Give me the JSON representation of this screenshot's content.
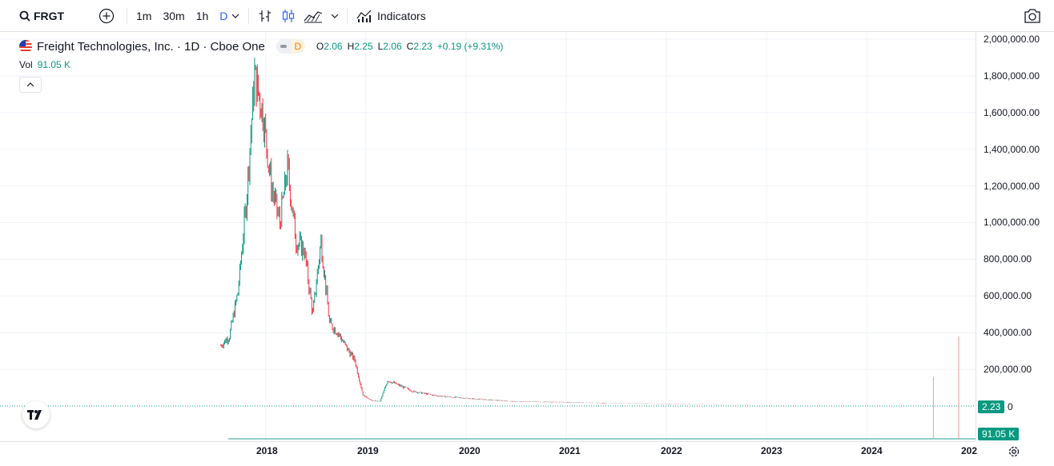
{
  "toolbar": {
    "symbol": "FRGT",
    "intervals": [
      "1m",
      "30m",
      "1h",
      "D"
    ],
    "active_interval": "D",
    "indicators_label": "Indicators"
  },
  "legend": {
    "title": "Freight Technologies, Inc. · 1D · Cboe One",
    "badge": "D",
    "open_key": "O",
    "open": "2.06",
    "high_key": "H",
    "high": "2.25",
    "low_key": "L",
    "low": "2.06",
    "close_key": "C",
    "close": "2.23",
    "change": "+0.19 (+9.31%)",
    "vol_key": "Vol",
    "vol": "91.05 K"
  },
  "price_axis": [
    "2,000,000.00",
    "1,800,000.00",
    "1,600,000.00",
    "1,400,000.00",
    "1,200,000.00",
    "1,000,000.00",
    "800,000.00",
    "600,000.00",
    "400,000.00",
    "200,000.00",
    "0"
  ],
  "time_axis": [
    "2018",
    "2019",
    "2020",
    "2021",
    "2022",
    "2023",
    "2024",
    "202"
  ],
  "last_price_badge": "2.23",
  "volume_badge": "91.05 K",
  "colors": {
    "up": "#089981",
    "down": "#f23645",
    "accent": "#2962ff"
  },
  "chart_data": {
    "type": "line",
    "title": "Freight Technologies, Inc. · 1D · Cboe One",
    "ylim": [
      0,
      2000000
    ],
    "series": [
      {
        "name": "FRGT",
        "x": [
          "2017-07",
          "2017-08",
          "2017-09",
          "2017-10",
          "2017-11",
          "2017-12",
          "2018-01",
          "2018-02",
          "2018-03",
          "2018-04",
          "2018-05",
          "2018-06",
          "2018-07",
          "2018-08",
          "2018-09",
          "2018-10",
          "2018-11",
          "2018-12",
          "2019-01",
          "2019-02",
          "2019-03",
          "2019-06",
          "2019-09",
          "2020-01",
          "2020-06",
          "2021-01",
          "2021-06",
          "2022-01",
          "2022-06",
          "2023-01",
          "2023-06",
          "2024-01",
          "2024-06",
          "2024-09",
          "2024-12"
        ],
        "values": [
          330000,
          380000,
          620000,
          1100000,
          1800000,
          1600000,
          1200000,
          1000000,
          1300000,
          900000,
          850000,
          500000,
          900000,
          450000,
          400000,
          320000,
          250000,
          60000,
          30000,
          25000,
          140000,
          80000,
          55000,
          40000,
          25000,
          20000,
          15000,
          12000,
          8000,
          3000,
          2000,
          1000,
          500,
          100,
          2.23
        ]
      }
    ],
    "volume_spikes": [
      {
        "x": "2024-07",
        "value": 160000
      },
      {
        "x": "2024-10",
        "value": 380000
      }
    ]
  }
}
